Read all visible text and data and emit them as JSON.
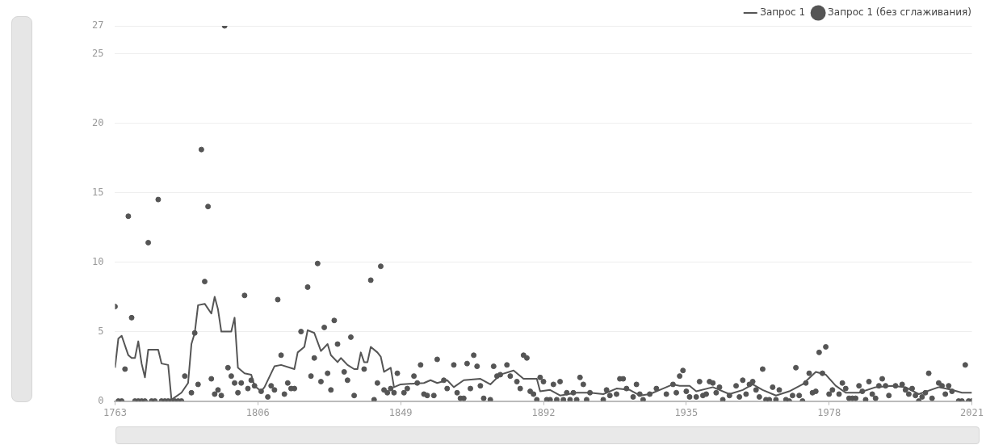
{
  "chart_data": {
    "type": "line",
    "xlim": [
      1763,
      2021
    ],
    "xticks": [
      1763,
      1806,
      1849,
      1892,
      1935,
      1978,
      2021
    ],
    "ylim": [
      0,
      27
    ],
    "yticks": [
      0,
      5,
      10,
      15,
      20,
      25,
      27
    ],
    "grid": "y",
    "legend": "top right",
    "series": [
      {
        "name": "Запрос 1",
        "color": "#555555",
        "marker": "none",
        "x": [
          1763,
          1764,
          1765,
          1767,
          1768,
          1769,
          1770,
          1771,
          1772,
          1773,
          1776,
          1777,
          1779,
          1780,
          1783,
          1785,
          1786,
          1787,
          1788,
          1790,
          1792,
          1793,
          1794,
          1795,
          1798,
          1799,
          1800,
          1802,
          1804,
          1805,
          1807,
          1808,
          1811,
          1813,
          1817,
          1818,
          1820,
          1821,
          1823,
          1825,
          1827,
          1828,
          1830,
          1831,
          1833,
          1835,
          1836,
          1837,
          1838,
          1839,
          1840,
          1842,
          1843,
          1844,
          1846,
          1847,
          1849,
          1856,
          1858,
          1860,
          1863,
          1865,
          1868,
          1873,
          1876,
          1879,
          1883,
          1886,
          1890,
          1891,
          1894,
          1897,
          1902,
          1906,
          1910,
          1914,
          1918,
          1921,
          1924,
          1928,
          1931,
          1933,
          1936,
          1938,
          1943,
          1948,
          1952,
          1955,
          1958,
          1962,
          1966,
          1970,
          1974,
          1977,
          1980,
          1983,
          1987,
          1992,
          1997,
          2001,
          2005,
          2011,
          2015,
          2018,
          2021
        ],
        "values": [
          2.4,
          4.5,
          4.7,
          3.3,
          3.1,
          3.1,
          4.3,
          2.7,
          1.7,
          3.7,
          3.7,
          2.7,
          2.6,
          0.1,
          0.6,
          1.3,
          4.1,
          4.9,
          6.9,
          7.0,
          6.3,
          7.5,
          6.6,
          5.0,
          5.0,
          6.0,
          2.4,
          2.0,
          1.9,
          1.1,
          0.7,
          1.0,
          2.5,
          2.6,
          2.3,
          3.5,
          3.9,
          5.1,
          4.9,
          3.6,
          4.1,
          3.3,
          2.8,
          3.1,
          2.6,
          2.3,
          2.3,
          3.5,
          2.8,
          2.8,
          3.9,
          3.5,
          3.2,
          2.1,
          2.4,
          1.0,
          1.2,
          1.3,
          1.5,
          1.3,
          1.5,
          1.0,
          1.5,
          1.6,
          1.2,
          1.9,
          2.2,
          1.6,
          1.6,
          0.7,
          0.8,
          0.4,
          0.6,
          0.6,
          0.5,
          0.9,
          0.8,
          0.4,
          0.5,
          0.9,
          1.2,
          1.1,
          1.1,
          0.7,
          1.0,
          0.5,
          0.8,
          1.2,
          0.8,
          0.4,
          0.7,
          1.2,
          2.1,
          1.9,
          1.1,
          0.6,
          0.6,
          1.0,
          1.1,
          1.0,
          0.5,
          1.0,
          0.8,
          0.6,
          0.6
        ]
      },
      {
        "name": "Запрос 1 (без сглаживания)",
        "type": "scatter",
        "color": "#555555",
        "marker": "circle",
        "x": [
          1763,
          1764,
          1765,
          1766,
          1767,
          1768,
          1769,
          1770,
          1771,
          1772,
          1773,
          1774,
          1775,
          1776,
          1777,
          1778,
          1779,
          1780,
          1781,
          1782,
          1783,
          1784,
          1786,
          1787,
          1788,
          1789,
          1790,
          1791,
          1792,
          1793,
          1794,
          1795,
          1796,
          1797,
          1798,
          1799,
          1800,
          1801,
          1802,
          1803,
          1804,
          1805,
          1807,
          1809,
          1810,
          1811,
          1812,
          1813,
          1814,
          1815,
          1816,
          1817,
          1819,
          1821,
          1822,
          1823,
          1824,
          1825,
          1826,
          1827,
          1828,
          1829,
          1830,
          1832,
          1833,
          1834,
          1835,
          1838,
          1840,
          1841,
          1842,
          1843,
          1844,
          1845,
          1846,
          1847,
          1848,
          1850,
          1851,
          1853,
          1854,
          1855,
          1856,
          1857,
          1859,
          1860,
          1862,
          1863,
          1865,
          1866,
          1867,
          1868,
          1869,
          1870,
          1871,
          1872,
          1873,
          1874,
          1876,
          1877,
          1878,
          1879,
          1881,
          1882,
          1884,
          1885,
          1886,
          1887,
          1888,
          1889,
          1890,
          1891,
          1892,
          1893,
          1894,
          1895,
          1896,
          1897,
          1898,
          1899,
          1900,
          1901,
          1902,
          1903,
          1904,
          1905,
          1906,
          1910,
          1911,
          1912,
          1914,
          1915,
          1916,
          1917,
          1919,
          1920,
          1921,
          1922,
          1924,
          1926,
          1929,
          1931,
          1932,
          1933,
          1934,
          1935,
          1936,
          1938,
          1939,
          1940,
          1941,
          1942,
          1943,
          1944,
          1945,
          1946,
          1948,
          1950,
          1951,
          1952,
          1953,
          1954,
          1955,
          1956,
          1957,
          1958,
          1959,
          1960,
          1961,
          1962,
          1963,
          1965,
          1966,
          1967,
          1968,
          1969,
          1970,
          1971,
          1972,
          1973,
          1974,
          1975,
          1976,
          1977,
          1978,
          1979,
          1981,
          1982,
          1983,
          1984,
          1985,
          1986,
          1987,
          1988,
          1989,
          1990,
          1991,
          1992,
          1993,
          1994,
          1995,
          1996,
          1998,
          2000,
          2001,
          2002,
          2003,
          2004,
          2005,
          2006,
          2007,
          2008,
          2009,
          2011,
          2012,
          2013,
          2014,
          2015,
          2017,
          2018,
          2019,
          2020,
          2021
        ],
        "values": [
          6.8,
          0,
          0,
          2.3,
          13.3,
          6.0,
          0,
          0,
          0,
          0,
          11.4,
          0,
          0,
          14.5,
          0,
          0,
          0,
          0,
          0,
          0,
          0,
          1.8,
          0.6,
          4.9,
          1.2,
          18.1,
          8.6,
          14.0,
          1.6,
          0.5,
          0.8,
          0.4,
          27,
          2.4,
          1.8,
          1.3,
          0.6,
          1.3,
          7.6,
          0.9,
          1.5,
          1.1,
          0.7,
          0.3,
          1.1,
          0.8,
          7.3,
          3.3,
          0.5,
          1.3,
          0.9,
          0.9,
          5.0,
          8.2,
          1.8,
          3.1,
          9.9,
          1.4,
          5.3,
          2.0,
          0.8,
          5.8,
          4.1,
          2.1,
          1.5,
          4.6,
          0.4,
          2.3,
          8.7,
          0.1,
          1.3,
          9.7,
          0.8,
          0.6,
          0.9,
          0.6,
          2.0,
          0.6,
          0.9,
          1.8,
          1.3,
          2.6,
          0.5,
          0.4,
          0.4,
          3.0,
          1.5,
          0.9,
          2.6,
          0.6,
          0.2,
          0.2,
          2.7,
          0.9,
          3.3,
          2.5,
          1.1,
          0.2,
          0.1,
          2.5,
          1.8,
          1.9,
          2.6,
          1.8,
          1.4,
          0.9,
          3.3,
          3.1,
          0.7,
          0.5,
          0.1,
          1.7,
          1.4,
          0.1,
          0.1,
          1.2,
          0.1,
          1.4,
          0.1,
          0.6,
          0.1,
          0.6,
          0.1,
          1.7,
          1.2,
          0.1,
          0.6,
          0.1,
          0.8,
          0.4,
          0.5,
          1.6,
          1.6,
          0.9,
          0.3,
          1.2,
          0.5,
          0.1,
          0.5,
          0.9,
          0.5,
          1.2,
          0.6,
          1.8,
          2.2,
          0.7,
          0.3,
          0.3,
          1.4,
          0.4,
          0.5,
          1.4,
          1.3,
          0.6,
          1.0,
          0.1,
          0.4,
          1.1,
          0.3,
          1.5,
          0.5,
          1.2,
          1.4,
          0.8,
          0.3,
          2.3,
          0.1,
          0.1,
          1.0,
          0.1,
          0.8,
          0.1,
          0,
          0.4,
          2.4,
          0.4,
          0,
          1.3,
          2.0,
          0.6,
          0.7,
          3.5,
          2.0,
          3.9,
          0.5,
          0.8,
          0.5,
          1.3,
          0.9,
          0.2,
          0.2,
          0.2,
          1.1,
          0.7,
          0.1,
          1.4,
          0.5,
          0.2,
          1.1,
          1.6,
          1.1,
          0.4,
          1.1,
          1.2,
          0.8,
          0.5,
          0.9,
          0.4,
          0,
          0.3,
          0.6,
          2.0,
          0.2,
          1.3,
          1.1,
          0.5,
          1.1,
          0.7,
          0,
          0,
          2.6,
          0,
          0
        ]
      }
    ]
  }
}
